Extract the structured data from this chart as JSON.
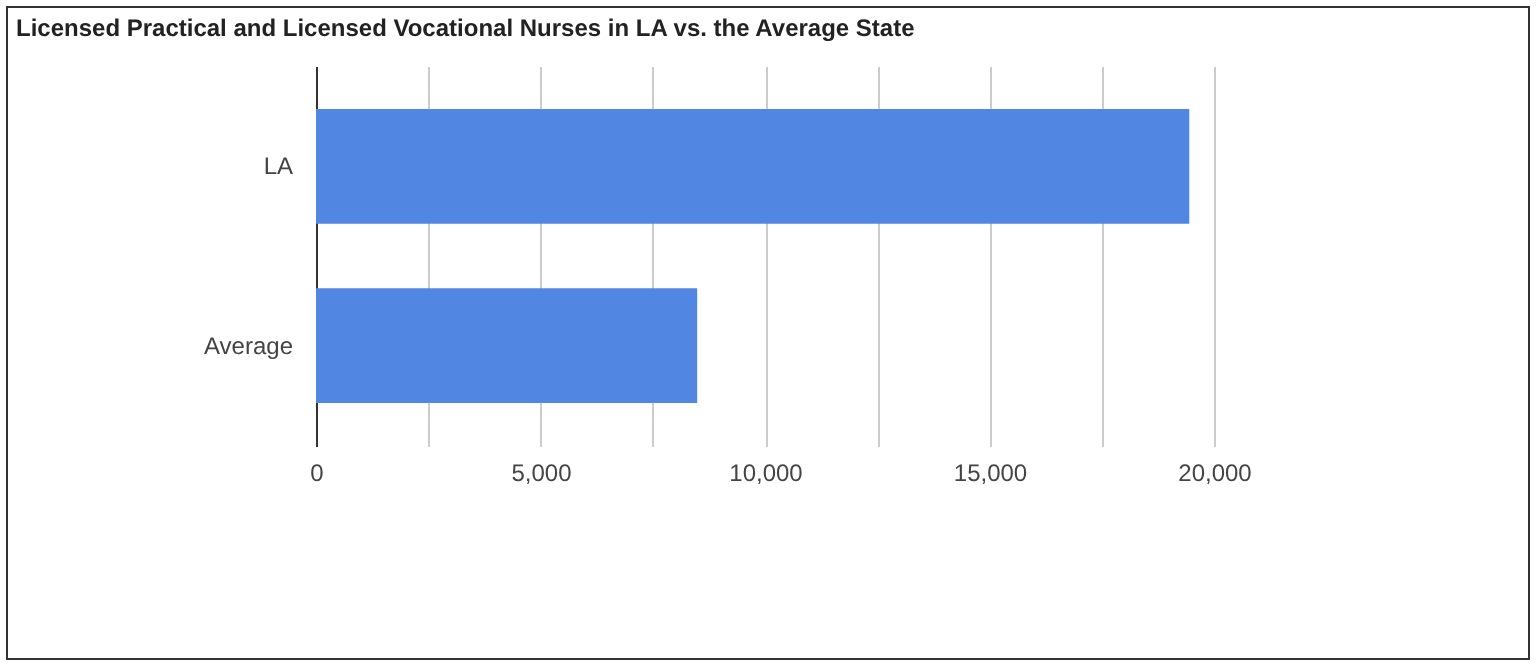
{
  "chart_data": {
    "type": "bar",
    "orientation": "horizontal",
    "title": "Licensed Practical and Licensed Vocational Nurses in LA vs. the Average State",
    "categories": [
      "LA",
      "Average"
    ],
    "values": [
      19450,
      8490
    ],
    "color": "#5286e3",
    "xlim": [
      0,
      20000
    ],
    "xticks": [
      0,
      {
        "value": 2500,
        "label": null
      },
      {
        "value": 5000,
        "label": "5,000"
      },
      {
        "value": 7500,
        "label": null
      },
      {
        "value": 10000,
        "label": "10,000"
      },
      {
        "value": 12500,
        "label": null
      },
      {
        "value": 15000,
        "label": "15,000"
      },
      {
        "value": 17500,
        "label": null
      },
      {
        "value": 20000,
        "label": "20,000"
      }
    ],
    "grid": "x"
  }
}
